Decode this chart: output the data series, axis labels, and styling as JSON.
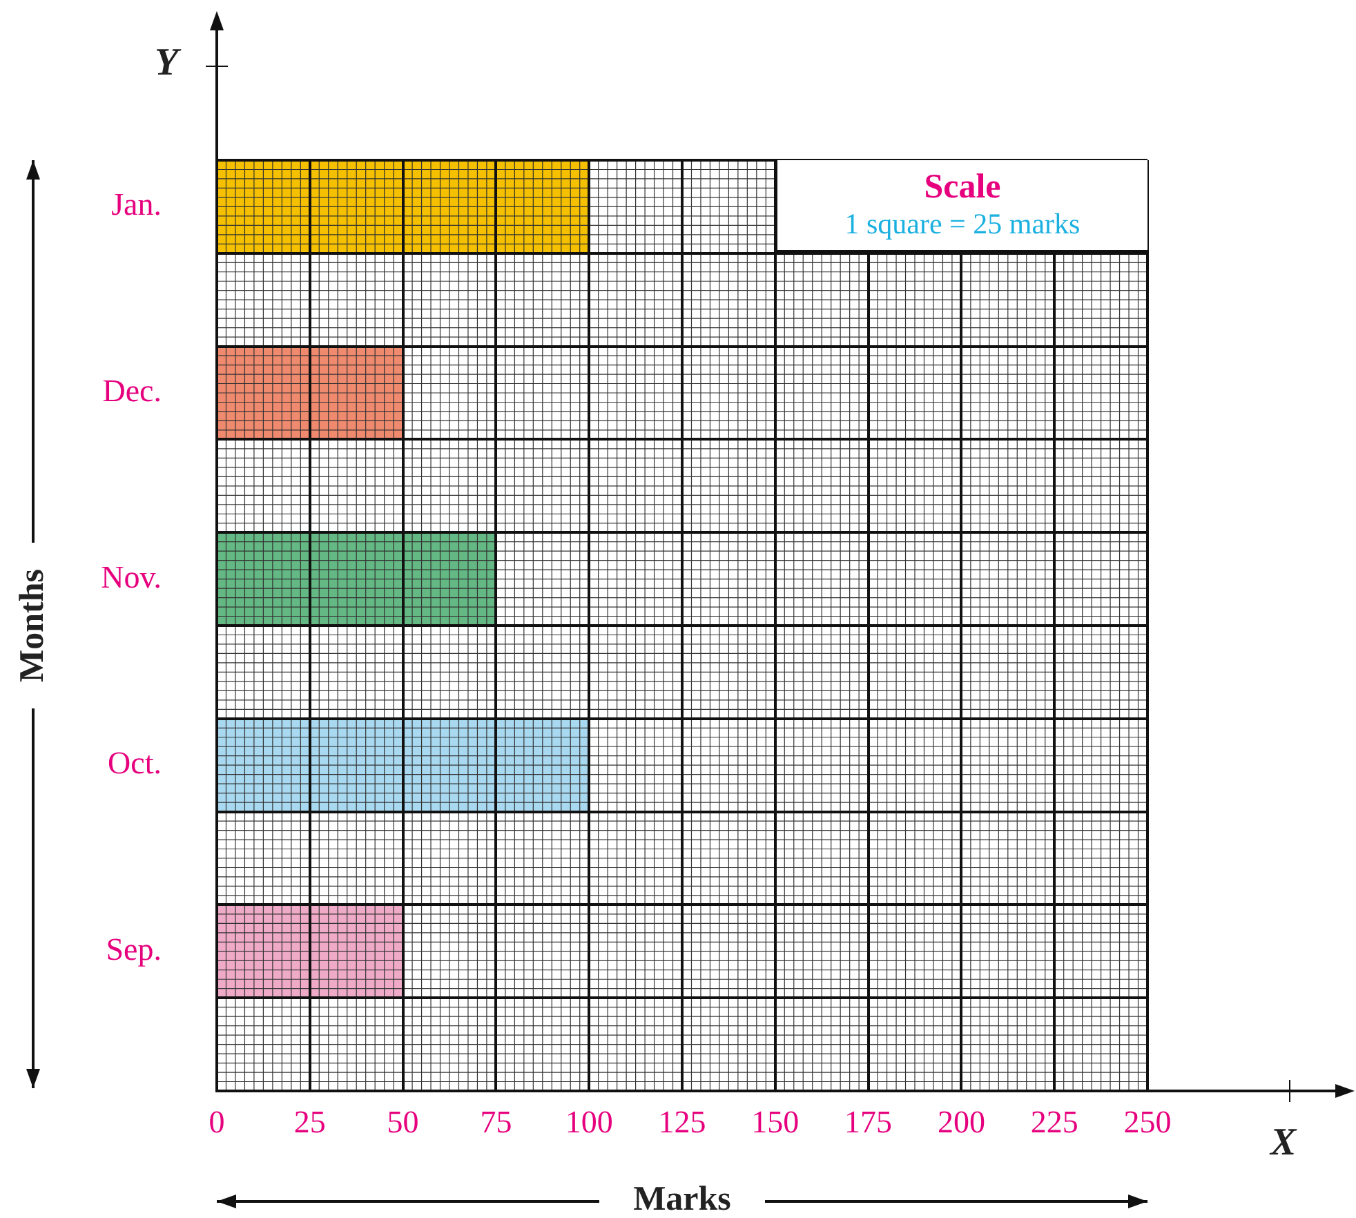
{
  "chart_data": {
    "type": "bar",
    "orientation": "horizontal",
    "xlabel": "Marks",
    "ylabel": "Months",
    "categories": [
      "Jan.",
      null,
      "Dec.",
      null,
      "Nov.",
      null,
      "Oct.",
      null,
      "Sep.",
      null
    ],
    "values": [
      100,
      null,
      50,
      null,
      75,
      null,
      100,
      null,
      50,
      null
    ],
    "colors": [
      "#f5c000",
      null,
      "#f08a6e",
      null,
      "#64b883",
      null,
      "#a8d9f0",
      null,
      "#eeaac6",
      null
    ],
    "xlim": [
      0,
      250
    ],
    "xticks": [
      0,
      25,
      50,
      75,
      100,
      125,
      150,
      175,
      200,
      225,
      250
    ],
    "grid": true,
    "annotations": [
      "Scale",
      "1 square = 25 marks",
      "X",
      "Y"
    ]
  }
}
